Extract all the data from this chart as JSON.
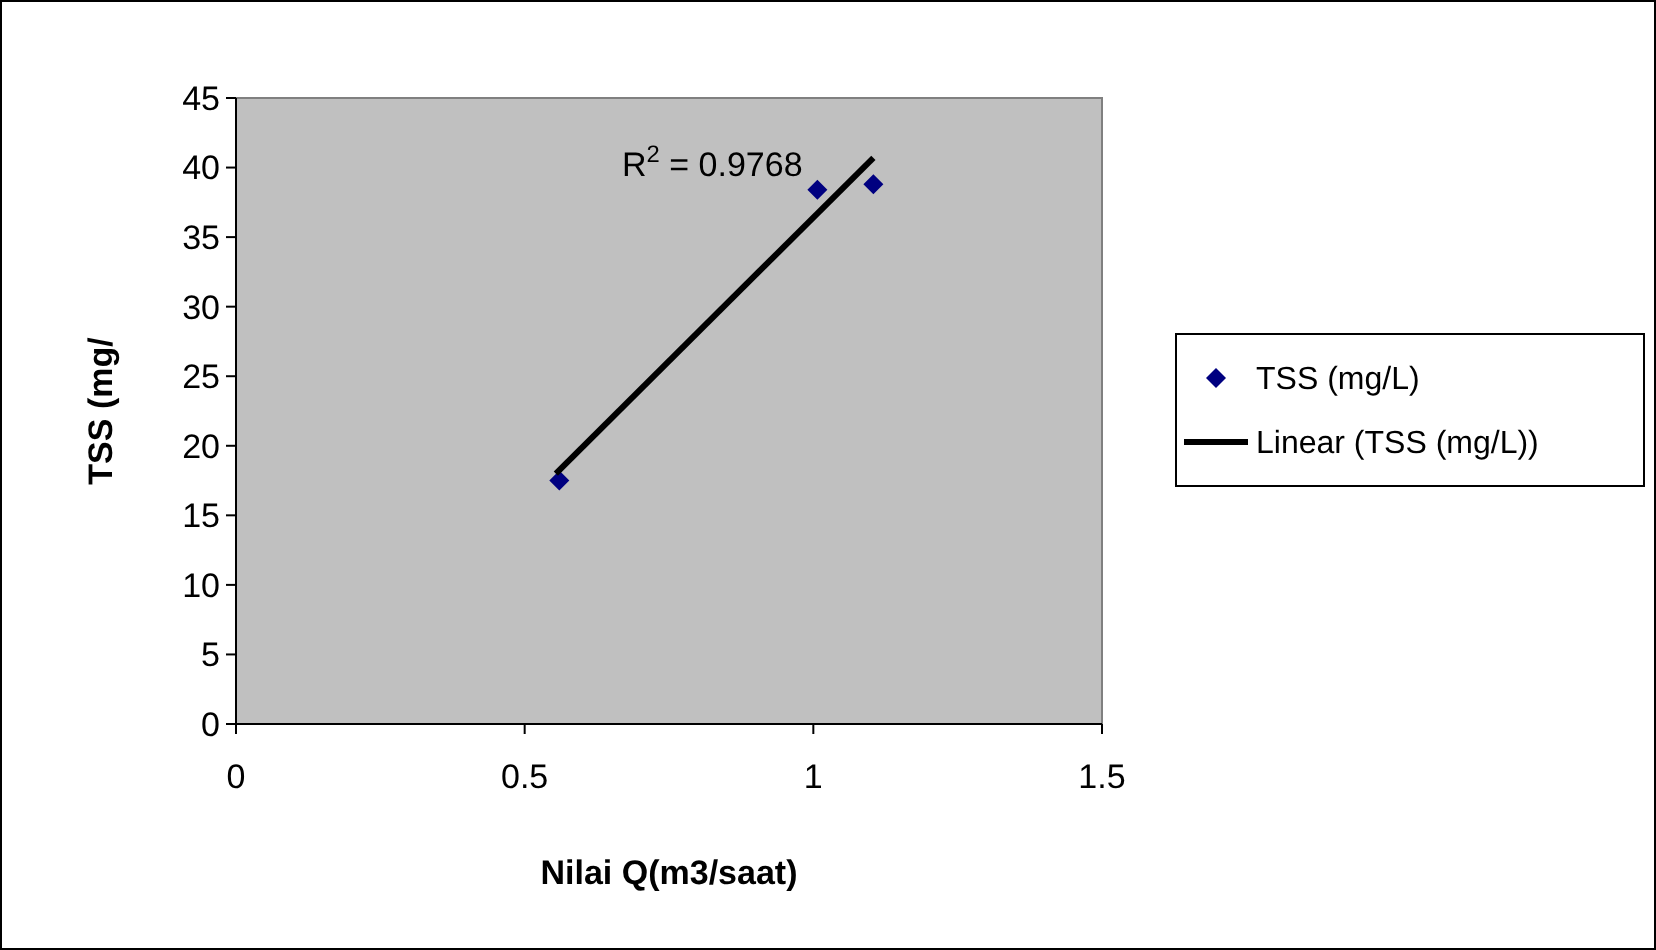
{
  "chart_data": {
    "type": "scatter",
    "xlabel": "Nilai Q(m3/saat)",
    "ylabel": "TSS (mg/",
    "xlim": [
      0,
      1.5
    ],
    "xticks": [
      0,
      0.5,
      1,
      1.5
    ],
    "ylim": [
      0,
      45
    ],
    "yticks": [
      0,
      5,
      10,
      15,
      20,
      25,
      30,
      35,
      40,
      45
    ],
    "marker": "diamond",
    "legend": "right",
    "grid": false,
    "annotations": [
      "R$^{2}$ = 0.9768"
    ],
    "series": [
      {
        "name": "TSS (mg/L)",
        "color": "#000080",
        "x": [
          0.56,
          1.007,
          1.104
        ],
        "values": [
          17.5,
          38.4,
          38.8
        ]
      },
      {
        "name": "Linear (TSS (mg/L))",
        "type": "line",
        "color": "#000000",
        "marker": "none",
        "line_style": "solid",
        "x": [
          0.554,
          1.104
        ],
        "values": [
          18.0,
          40.7
        ]
      }
    ]
  }
}
